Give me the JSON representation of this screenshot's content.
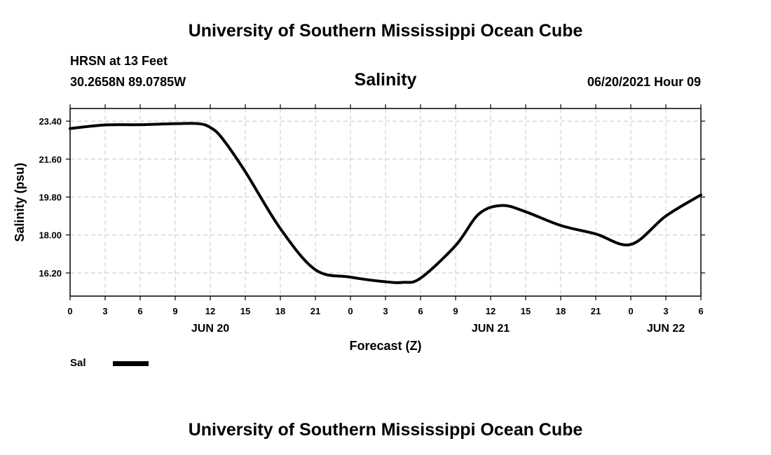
{
  "header": {
    "title_top": "University of Southern Mississippi Ocean Cube",
    "station": "HRSN at 13 Feet",
    "coords": "30.2658N  89.0785W",
    "chart_title": "Salinity",
    "run_date": "06/20/2021 Hour 09"
  },
  "footer": {
    "title_bottom": "University of Southern Mississippi Ocean Cube"
  },
  "legend": {
    "label": "Sal",
    "color": "#000000"
  },
  "chart_data": {
    "type": "line",
    "title": "Salinity",
    "xlabel": "Forecast (Z)",
    "ylabel": "Salinity (psu)",
    "xlim": [
      0,
      54
    ],
    "ylim": [
      15.1,
      24.0
    ],
    "grid": true,
    "legend_position": "bottom-left",
    "yticks": [
      "16.20",
      "18.00",
      "19.80",
      "21.60",
      "23.40"
    ],
    "xtick_labels": [
      "0",
      "3",
      "6",
      "9",
      "12",
      "15",
      "18",
      "21",
      "0",
      "3",
      "6",
      "9",
      "12",
      "15",
      "18",
      "21",
      "0",
      "3",
      "6"
    ],
    "date_labels": [
      {
        "hour": 12,
        "label": "JUN 20"
      },
      {
        "hour": 36,
        "label": "JUN 21"
      },
      {
        "hour": 51,
        "label": "JUN 22"
      }
    ],
    "series": [
      {
        "name": "Sal",
        "color": "#000000",
        "x": [
          0,
          3,
          6,
          9,
          11,
          12,
          13,
          15,
          18,
          21,
          24,
          27,
          28.5,
          30,
          33,
          35,
          37,
          39,
          42,
          45,
          48,
          51,
          54
        ],
        "y": [
          23.05,
          23.22,
          23.23,
          23.28,
          23.28,
          23.1,
          22.6,
          21.0,
          18.3,
          16.35,
          16.0,
          15.78,
          15.75,
          15.95,
          17.5,
          19.0,
          19.4,
          19.1,
          18.45,
          18.05,
          17.55,
          18.9,
          19.9
        ]
      }
    ]
  }
}
